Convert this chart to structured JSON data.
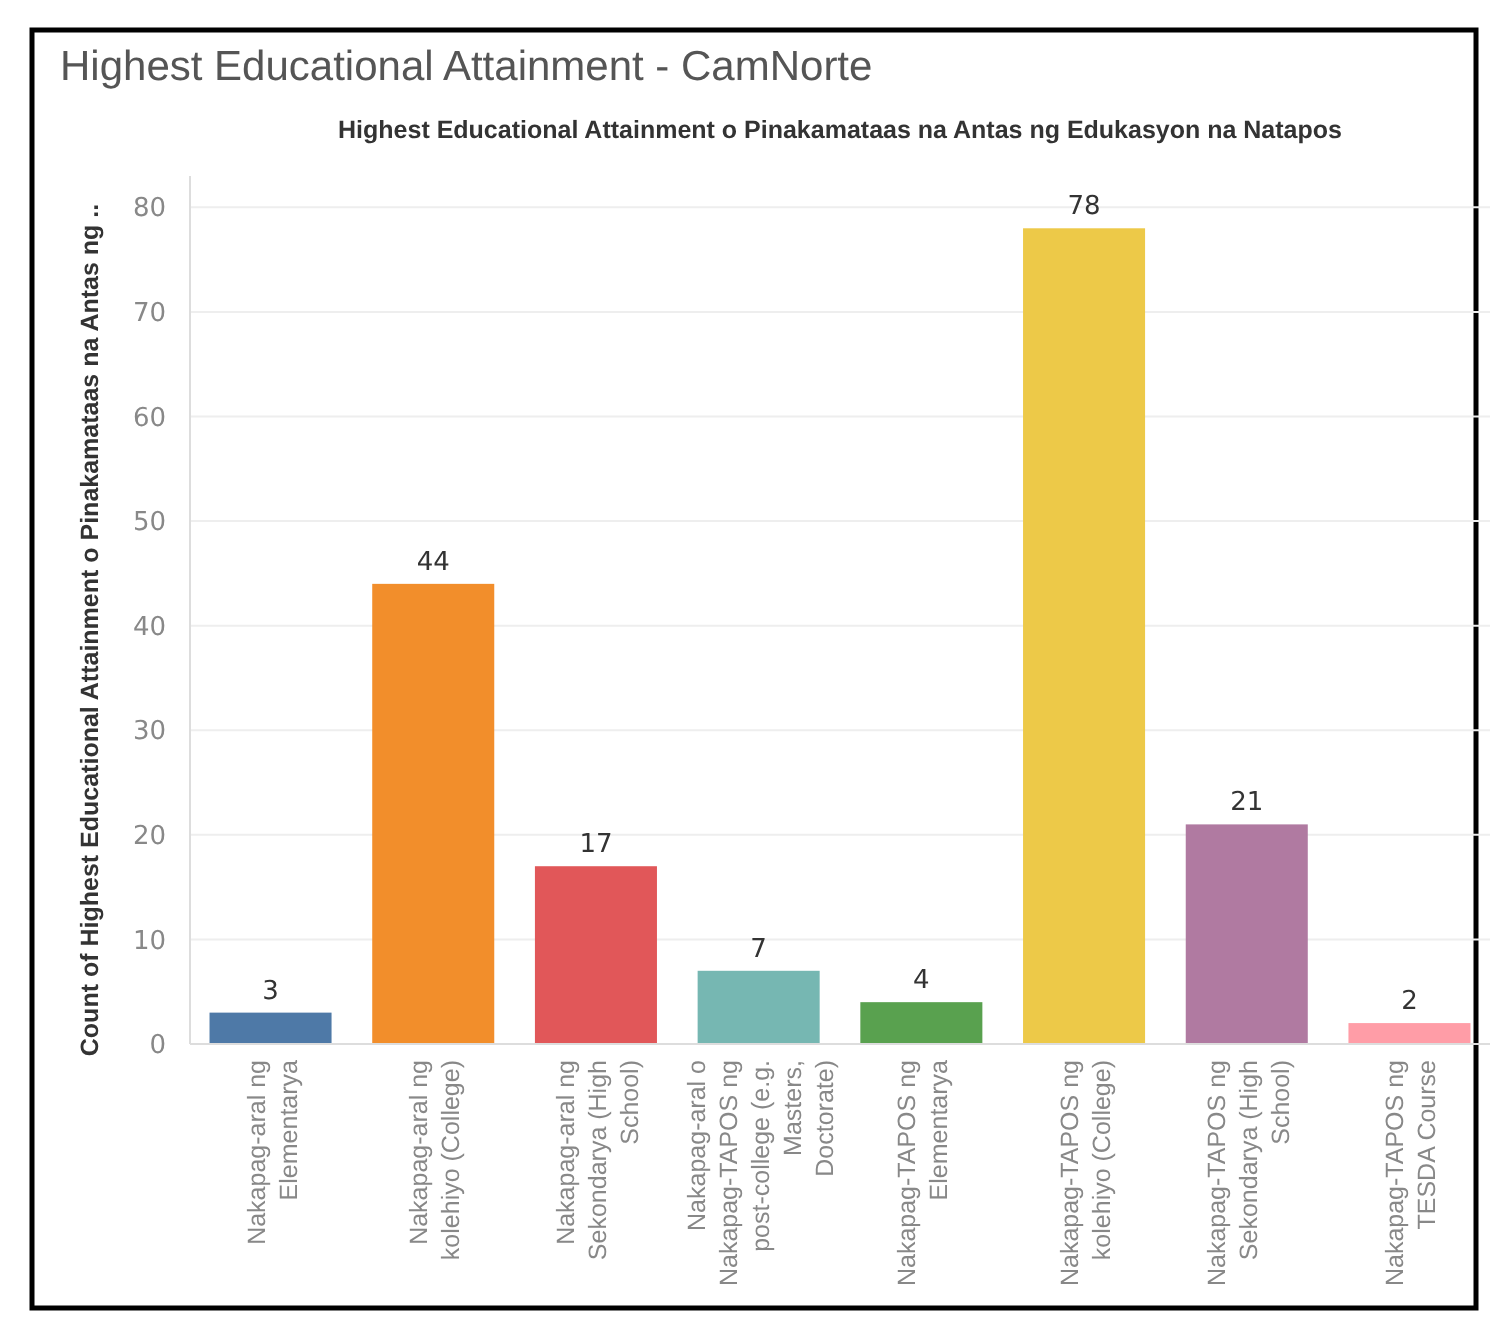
{
  "chart_data": {
    "type": "bar",
    "title": "Highest Educational Attainment - CamNorte",
    "subtitle": "Highest Educational Attainment o Pinakamataas na Antas ng Edukasyon na Natapos",
    "ylabel": "Count of Highest Educational Attainment o Pinakamataas na Antas ng ..",
    "categories": [
      "Nakapag-aral ng Elementarya",
      "Nakapag-aral ng kolehiyo (College)",
      "Nakapag-aral ng Sekondarya (High School)",
      "Nakapag-aral o Nakapag-TAPOS ng post-college (e.g. Masters, Doctorate)",
      "Nakapag-TAPOS ng Elementarya",
      "Nakapag-TAPOS ng kolehiyo (College)",
      "Nakapag-TAPOS ng Sekondarya (High School)",
      "Nakapag-TAPOS ng TESDA Course"
    ],
    "values": [
      3,
      44,
      17,
      7,
      4,
      78,
      21,
      2
    ],
    "colors": [
      "#4e79a7",
      "#f28e2b",
      "#e15759",
      "#76b7b2",
      "#59a14f",
      "#edc948",
      "#b07aa1",
      "#ff9da7"
    ],
    "ylim": [
      0,
      83
    ],
    "yticks": [
      0,
      10,
      20,
      30,
      40,
      50,
      60,
      70,
      80
    ],
    "grid": "y",
    "data_labels": true
  }
}
